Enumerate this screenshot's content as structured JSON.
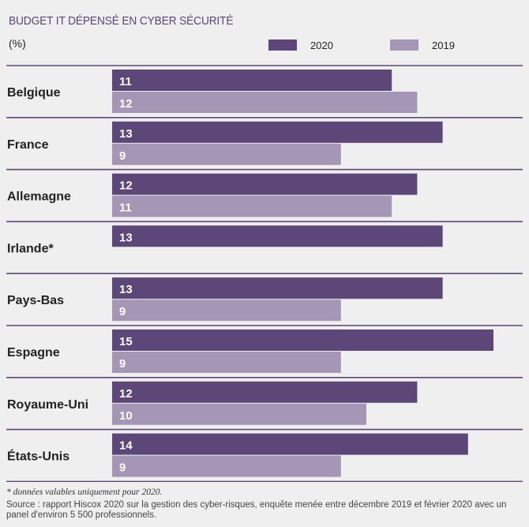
{
  "chart_data": {
    "type": "bar",
    "orientation": "horizontal",
    "title": "BUDGET IT DÉPENSÉ EN CYBER SÉCURITÉ",
    "unit": "(%)",
    "categories": [
      "Belgique",
      "France",
      "Allemagne",
      "Irlande*",
      "Pays-Bas",
      "Espagne",
      "Royaume-Uni",
      "États-Unis"
    ],
    "series": [
      {
        "name": "2020",
        "color": "#5d4778",
        "values": [
          11,
          13,
          12,
          13,
          13,
          15,
          12,
          14
        ]
      },
      {
        "name": "2019",
        "color": "#a596b5",
        "values": [
          12,
          9,
          11,
          null,
          9,
          9,
          10,
          9
        ]
      }
    ],
    "legend_position": "top-right",
    "grid": false
  },
  "footnote": "* données valables uniquement pour 2020.",
  "source": "Source : rapport Hiscox 2020 sur la gestion des cyber-risques, enquête menée entre décembre 2019 et février 2020 avec un panel d'environ 5 500 professionnels."
}
